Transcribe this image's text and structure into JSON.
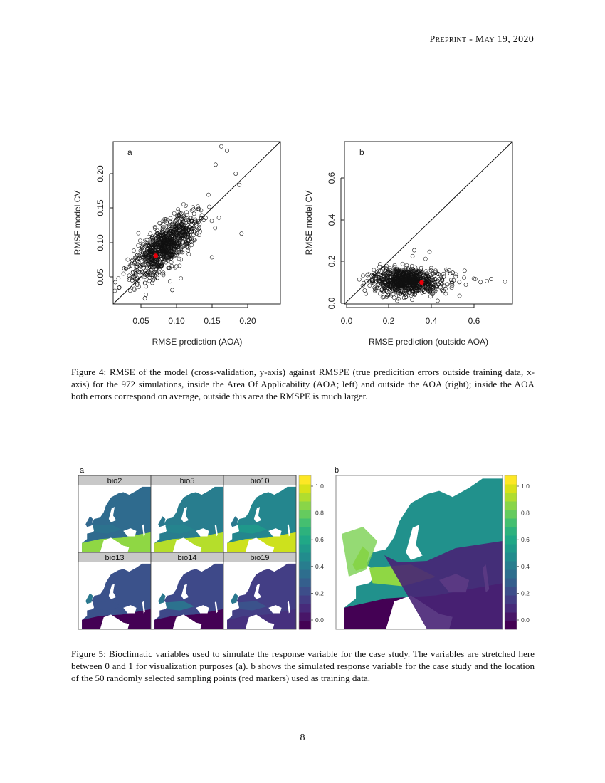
{
  "header": {
    "prefix": "Preprint",
    "separator": " - ",
    "date": "May 19, 2020"
  },
  "figure4": {
    "caption": "Figure 4: RMSE of the model (cross-validation, y-axis) against RMSPE (true predicition errors outside training data, x-axis) for the 972 simulations, inside the Area Of Applicability (AOA; left) and outside the AOA (right); inside the AOA both errors correspond on average, outside this area the RMSPE is much larger.",
    "panel_a": {
      "label": "a",
      "xlabel": "RMSE prediction (AOA)",
      "ylabel": "RMSE model CV"
    },
    "panel_b": {
      "label": "b",
      "xlabel": "RMSE prediction (outside AOA)",
      "ylabel": "RMSE model CV"
    }
  },
  "figure5": {
    "caption": "Figure 5: Bioclimatic variables used to simulate the response variable for the case study. The variables are stretched here between 0 and 1 for visualization purposes (a). b shows the simulated response variable for the case study and the location of the 50 randomly selected sampling points (red markers) used as training data.",
    "panel_a": {
      "label": "a",
      "strips": [
        "bio2",
        "bio5",
        "bio10",
        "bio13",
        "bio14",
        "bio19"
      ]
    },
    "panel_b": {
      "label": "b"
    },
    "colorbar": {
      "ticks": [
        "1.0",
        "0.8",
        "0.6",
        "0.4",
        "0.2",
        "0.0"
      ],
      "colors": [
        "#440154",
        "#481668",
        "#472a7a",
        "#433d84",
        "#3d4e8a",
        "#355f8d",
        "#2e6e8e",
        "#287d8e",
        "#228c8d",
        "#1f9a8a",
        "#20a886",
        "#2db27d",
        "#44bf70",
        "#65cb5e",
        "#89d548",
        "#b0dd2f",
        "#d8e219",
        "#fde725"
      ]
    },
    "marker_color": "#e8303a"
  },
  "page_number": "8",
  "chart_data": [
    {
      "type": "scatter",
      "title": "a",
      "xlabel": "RMSE prediction (AOA)",
      "ylabel": "RMSE model CV",
      "xlim": [
        0.013,
        0.245
      ],
      "ylim": [
        0.012,
        0.245
      ],
      "xticks": [
        "0.05",
        "0.10",
        "0.15",
        "0.20"
      ],
      "yticks": [
        "0.05",
        "0.10",
        "0.15",
        "0.20"
      ],
      "n_points": 972,
      "reference_line": "y = x",
      "cloud": {
        "center": [
          0.085,
          0.095
        ],
        "sd_major": 0.03,
        "sd_minor": 0.012,
        "angle_deg": 45
      },
      "highlight_point": {
        "x": 0.072,
        "y": 0.081,
        "color": "#e8000b"
      },
      "outliers": [
        [
          0.163,
          0.238
        ],
        [
          0.171,
          0.232
        ],
        [
          0.191,
          0.113
        ],
        [
          0.057,
          0.02
        ],
        [
          0.042,
          0.034
        ],
        [
          0.155,
          0.212
        ],
        [
          0.183,
          0.199
        ],
        [
          0.188,
          0.183
        ],
        [
          0.095,
          0.032
        ],
        [
          0.15,
          0.079
        ]
      ]
    },
    {
      "type": "scatter",
      "title": "b",
      "xlabel": "RMSE prediction (outside AOA)",
      "ylabel": "RMSE model CV",
      "xlim": [
        -0.01,
        0.78
      ],
      "ylim": [
        -0.02,
        0.76
      ],
      "xticks": [
        "0.0",
        "0.2",
        "0.4",
        "0.6"
      ],
      "yticks": [
        "0.0",
        "0.2",
        "0.4",
        "0.6"
      ],
      "n_points": 972,
      "reference_line": "y = x",
      "cloud": {
        "center": [
          0.26,
          0.09
        ],
        "sd_x": 0.09,
        "sd_y": 0.03
      },
      "highlight_point": {
        "x": 0.353,
        "y": 0.083,
        "color": "#e8000b"
      },
      "outliers": [
        [
          0.745,
          0.087
        ],
        [
          0.68,
          0.1
        ],
        [
          0.66,
          0.09
        ],
        [
          0.63,
          0.085
        ],
        [
          0.605,
          0.1
        ],
        [
          0.318,
          0.238
        ],
        [
          0.39,
          0.231
        ],
        [
          0.31,
          0.21
        ],
        [
          0.08,
          0.08
        ],
        [
          0.085,
          0.045
        ],
        [
          0.555,
          0.14
        ],
        [
          0.53,
          0.085
        ]
      ]
    },
    {
      "type": "heatmap",
      "title": "a",
      "panels": [
        "bio2",
        "bio5",
        "bio10",
        "bio13",
        "bio14",
        "bio19"
      ],
      "colorbar_range": [
        0.0,
        1.0
      ],
      "colorbar_ticks": [
        0.0,
        0.2,
        0.4,
        0.6,
        0.8,
        1.0
      ]
    },
    {
      "type": "heatmap",
      "title": "b",
      "colorbar_range": [
        0.0,
        1.0
      ],
      "colorbar_ticks": [
        0.0,
        0.2,
        0.4,
        0.6,
        0.8,
        1.0
      ],
      "sampling_points": 50
    }
  ]
}
